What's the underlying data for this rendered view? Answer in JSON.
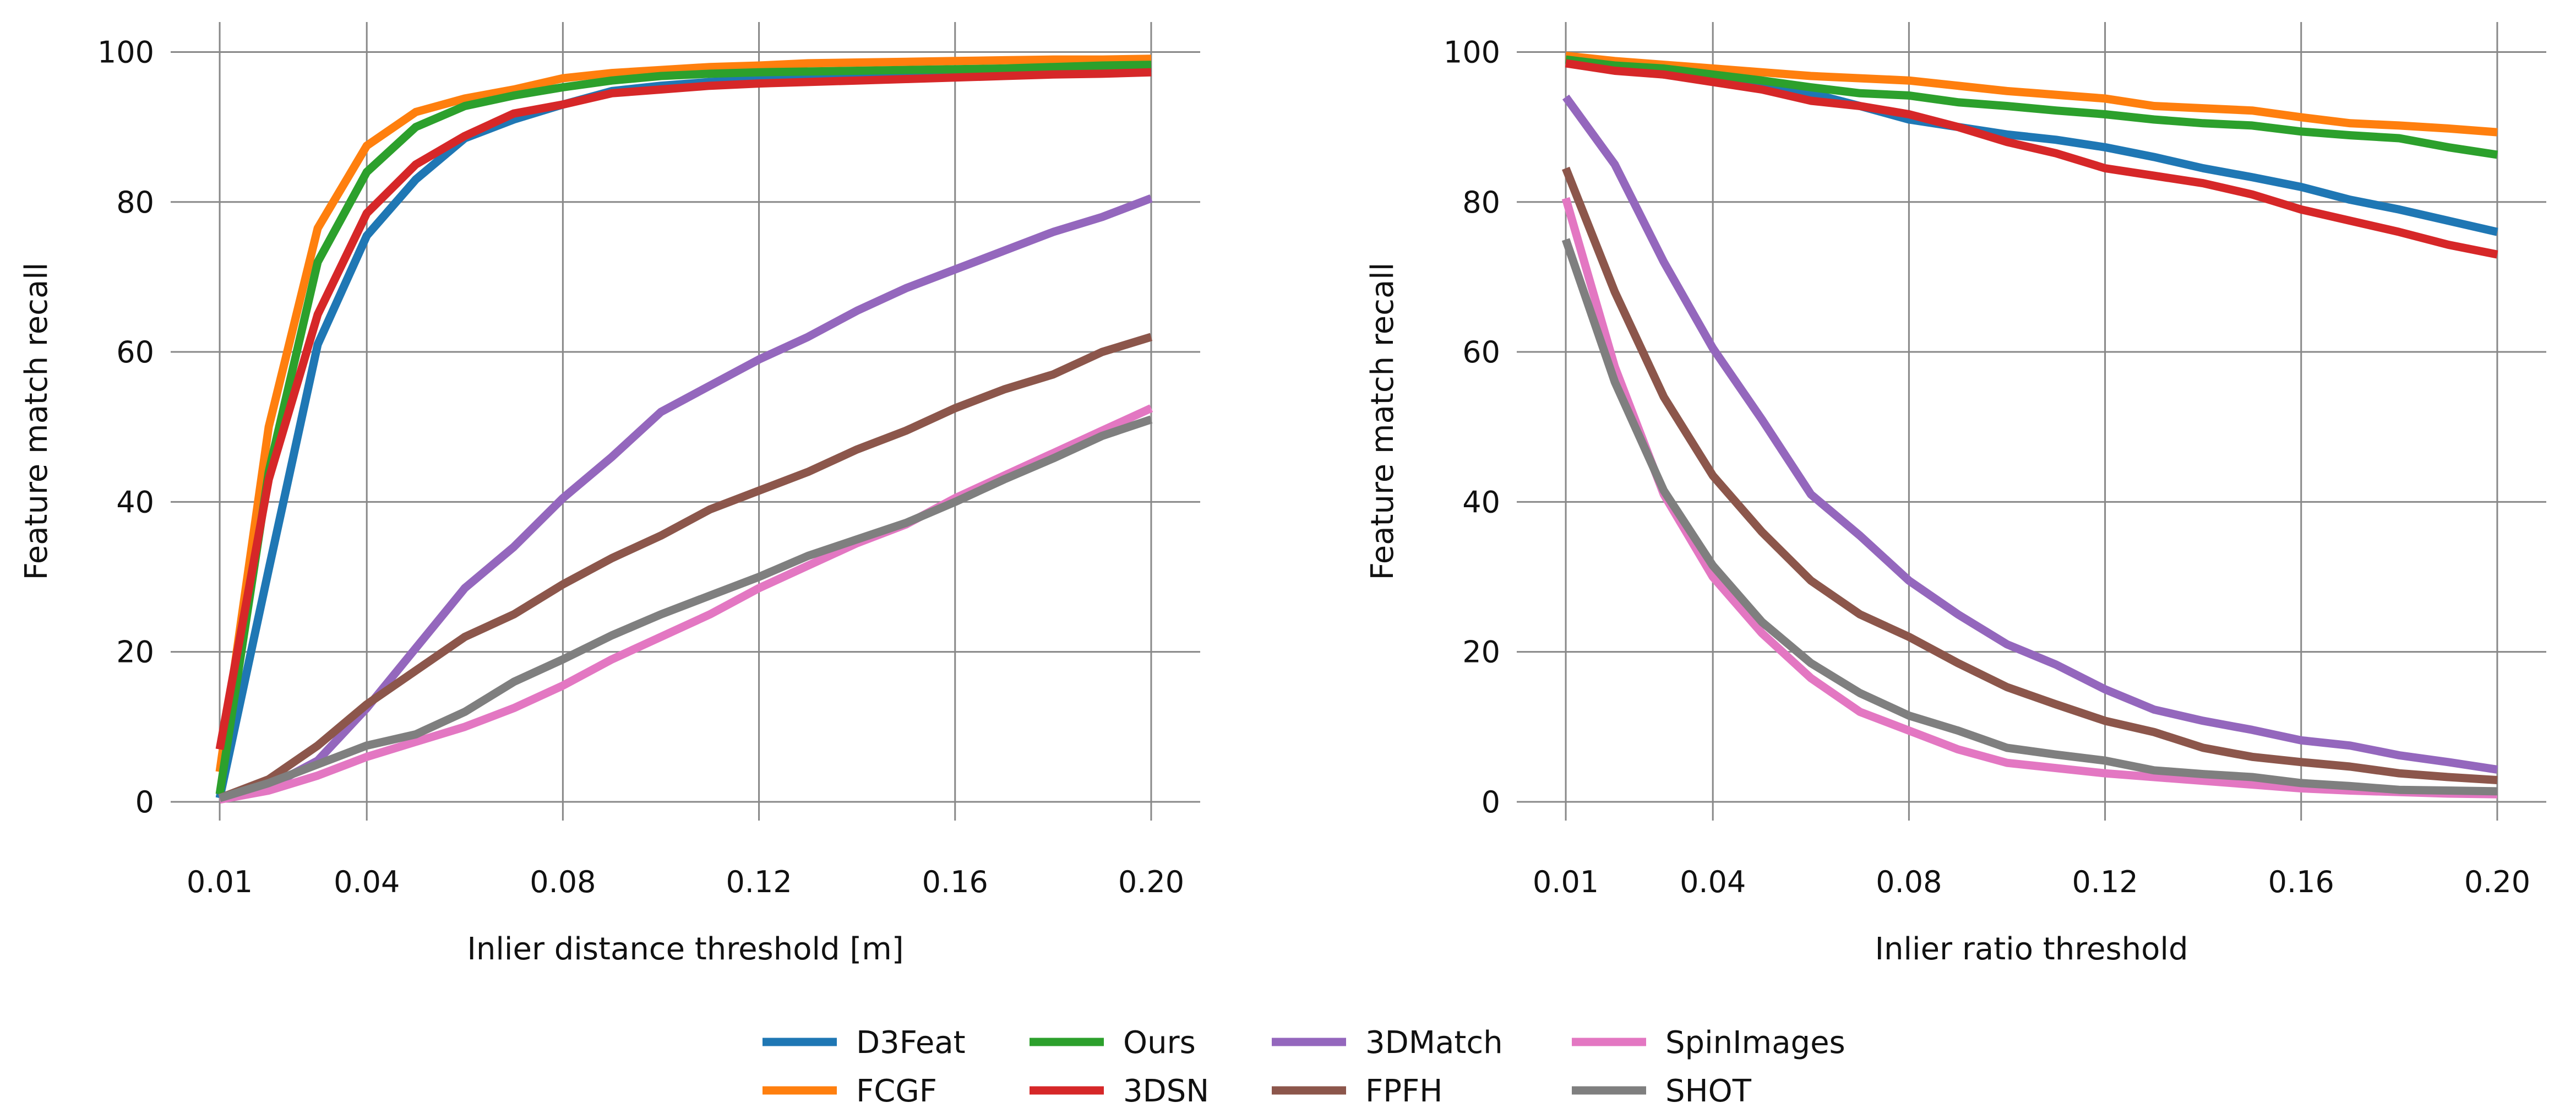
{
  "figure": {
    "legend": {
      "placement": "bottom-center",
      "columns": 4,
      "order": [
        "D3Feat",
        "FCGF",
        "Ours",
        "3DSN",
        "3DMatch",
        "FPFH",
        "SpinImages",
        "SHOT"
      ]
    }
  },
  "colors": {
    "D3Feat": "#1f77b4",
    "FCGF": "#ff7f0e",
    "Ours": "#2ca02c",
    "3DSN": "#d62728",
    "3DMatch": "#9467bd",
    "FPFH": "#8c564b",
    "SpinImages": "#e377c2",
    "SHOT": "#7f7f7f",
    "grid": "#888888"
  },
  "chart_data": [
    {
      "type": "line",
      "title": "",
      "xlabel": "Inlier distance threshold [m]",
      "ylabel": "Feature match recall",
      "x": [
        0.01,
        0.02,
        0.03,
        0.04,
        0.05,
        0.06,
        0.07,
        0.08,
        0.09,
        0.1,
        0.11,
        0.12,
        0.13,
        0.14,
        0.15,
        0.16,
        0.17,
        0.18,
        0.19,
        0.2
      ],
      "xlim": [
        0.0,
        0.21
      ],
      "ylim": [
        -2.5,
        104
      ],
      "xticks": [
        0.01,
        0.04,
        0.08,
        0.12,
        0.16,
        0.2
      ],
      "xtick_labels": [
        "0.01",
        "0.04",
        "0.08",
        "0.12",
        "0.16",
        "0.20"
      ],
      "yticks": [
        0,
        20,
        40,
        60,
        80,
        100
      ],
      "ytick_labels": [
        "0",
        "20",
        "40",
        "60",
        "80",
        "100"
      ],
      "grid": true,
      "series": [
        {
          "name": "D3Feat",
          "values": [
            0.5,
            31,
            61,
            75.5,
            83,
            88.5,
            91,
            93,
            94.8,
            95.5,
            96,
            96.3,
            96.6,
            96.8,
            97,
            97.2,
            97.4,
            97.5,
            97.7,
            97.9
          ]
        },
        {
          "name": "FCGF",
          "values": [
            4,
            50,
            76.5,
            87.5,
            92,
            93.8,
            95,
            96.5,
            97.2,
            97.6,
            98,
            98.2,
            98.5,
            98.6,
            98.7,
            98.8,
            98.9,
            99,
            99,
            99.1
          ]
        },
        {
          "name": "Ours",
          "values": [
            1,
            44,
            72,
            84,
            90,
            92.8,
            94.2,
            95.3,
            96.2,
            96.8,
            97.1,
            97.3,
            97.4,
            97.5,
            97.6,
            97.7,
            97.8,
            98,
            98.2,
            98.3
          ]
        },
        {
          "name": "3DSN",
          "values": [
            7,
            43,
            65,
            78.5,
            85,
            88.8,
            91.8,
            93,
            94.5,
            95,
            95.5,
            95.8,
            96,
            96.2,
            96.4,
            96.6,
            96.8,
            97,
            97.1,
            97.3
          ]
        },
        {
          "name": "3DMatch",
          "values": [
            0.5,
            2,
            5.5,
            12.5,
            20.5,
            28.5,
            34,
            40.5,
            46,
            52,
            55.5,
            59,
            62,
            65.5,
            68.5,
            71,
            73.5,
            76,
            78,
            80.5
          ]
        },
        {
          "name": "FPFH",
          "values": [
            0.5,
            3,
            7.5,
            13,
            17.5,
            22,
            25,
            29,
            32.5,
            35.5,
            39,
            41.5,
            44,
            47,
            49.5,
            52.5,
            55,
            57,
            60,
            62
          ]
        },
        {
          "name": "SpinImages",
          "values": [
            0.3,
            1.5,
            3.5,
            6,
            8,
            10,
            12.5,
            15.5,
            19,
            22,
            25,
            28.5,
            31.5,
            34.5,
            37,
            40.5,
            43.5,
            46.5,
            49.5,
            52.5
          ]
        },
        {
          "name": "SHOT",
          "values": [
            0.5,
            2.5,
            5,
            7.5,
            9,
            12,
            16,
            19,
            22.2,
            25,
            27.5,
            30,
            32.8,
            35,
            37.2,
            40,
            43,
            45.8,
            48.8,
            51
          ]
        }
      ]
    },
    {
      "type": "line",
      "title": "",
      "xlabel": "Inlier ratio threshold",
      "ylabel": "Feature match recall",
      "x": [
        0.01,
        0.02,
        0.03,
        0.04,
        0.05,
        0.06,
        0.07,
        0.08,
        0.09,
        0.1,
        0.11,
        0.12,
        0.13,
        0.14,
        0.15,
        0.16,
        0.17,
        0.18,
        0.19,
        0.2
      ],
      "xlim": [
        0.0,
        0.21
      ],
      "ylim": [
        -2.5,
        104
      ],
      "xticks": [
        0.01,
        0.04,
        0.08,
        0.12,
        0.16,
        0.2
      ],
      "xtick_labels": [
        "0.01",
        "0.04",
        "0.08",
        "0.12",
        "0.16",
        "0.20"
      ],
      "yticks": [
        0,
        20,
        40,
        60,
        80,
        100
      ],
      "ytick_labels": [
        "0",
        "20",
        "40",
        "60",
        "80",
        "100"
      ],
      "grid": true,
      "series": [
        {
          "name": "D3Feat",
          "values": [
            98.5,
            97.8,
            97,
            96.5,
            95.5,
            94.5,
            92.8,
            91,
            90,
            89,
            88.3,
            87.3,
            86,
            84.5,
            83.3,
            82,
            80.3,
            79,
            77.5,
            76
          ]
        },
        {
          "name": "FCGF",
          "values": [
            99.5,
            98.8,
            98.3,
            97.8,
            97.3,
            96.8,
            96.5,
            96.2,
            95.5,
            94.8,
            94.3,
            93.8,
            92.8,
            92.5,
            92.2,
            91.3,
            90.5,
            90.2,
            89.8,
            89.3
          ]
        },
        {
          "name": "Ours",
          "values": [
            99,
            98.2,
            97.8,
            97,
            96.2,
            95.3,
            94.5,
            94.2,
            93.3,
            92.8,
            92.2,
            91.7,
            91,
            90.5,
            90.2,
            89.4,
            88.9,
            88.5,
            87.3,
            86.3
          ]
        },
        {
          "name": "3DSN",
          "values": [
            98.5,
            97.5,
            97,
            96,
            95,
            93.5,
            92.8,
            91.7,
            90,
            88,
            86.5,
            84.5,
            83.5,
            82.5,
            81,
            79,
            77.5,
            76,
            74.3,
            73
          ]
        },
        {
          "name": "3DMatch",
          "values": [
            94,
            85,
            72,
            60.5,
            51,
            41,
            35.5,
            29.5,
            25,
            21,
            18.3,
            15,
            12.3,
            10.8,
            9.6,
            8.2,
            7.5,
            6.2,
            5.3,
            4.3
          ]
        },
        {
          "name": "FPFH",
          "values": [
            84.5,
            68,
            54,
            43.5,
            36,
            29.5,
            25,
            22,
            18.5,
            15.3,
            13,
            10.8,
            9.3,
            7.2,
            6,
            5.3,
            4.7,
            3.8,
            3.3,
            2.9
          ]
        },
        {
          "name": "SpinImages",
          "values": [
            80.5,
            58,
            41,
            30,
            22.5,
            16.5,
            12,
            9.5,
            7,
            5.2,
            4.5,
            3.8,
            3.3,
            2.8,
            2.3,
            1.8,
            1.5,
            1.3,
            1.1,
            1
          ]
        },
        {
          "name": "SHOT",
          "values": [
            75,
            56,
            41.5,
            31.5,
            24,
            18.5,
            14.5,
            11.5,
            9.5,
            7.2,
            6.3,
            5.5,
            4.2,
            3.7,
            3.3,
            2.5,
            2.1,
            1.6,
            1.5,
            1.4
          ]
        }
      ]
    }
  ]
}
